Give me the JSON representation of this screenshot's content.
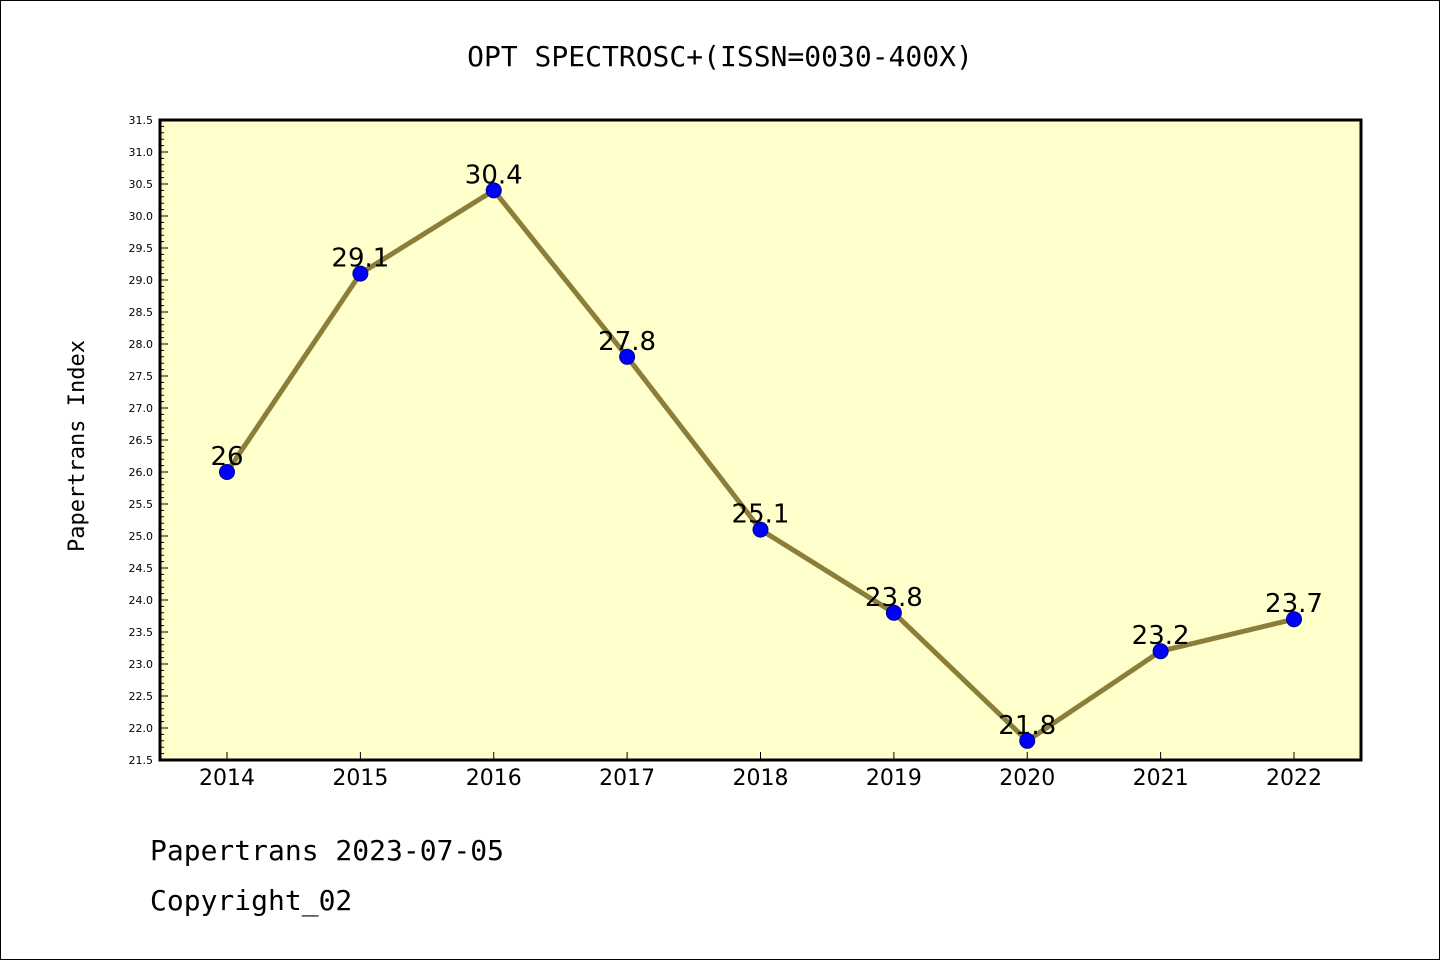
{
  "chart_data": {
    "type": "line",
    "title": "OPT SPECTROSC+(ISSN=0030-400X)",
    "ylabel": "Papertrans Index",
    "xlabel": "",
    "categories": [
      "2014",
      "2015",
      "2016",
      "2017",
      "2018",
      "2019",
      "2020",
      "2021",
      "2022"
    ],
    "series": [
      {
        "values": [
          26.0,
          29.1,
          30.4,
          27.8,
          25.1,
          23.8,
          21.8,
          23.2,
          23.7
        ],
        "data_labels": [
          "26",
          "29.1",
          "30.4",
          "27.8",
          "25.1",
          "23.8",
          "21.8",
          "23.2",
          "23.7"
        ]
      }
    ],
    "ylim": [
      21.5,
      31.5
    ],
    "yticks": [
      "21.5",
      "22.0",
      "22.5",
      "23.0",
      "23.5",
      "24.0",
      "24.5",
      "25.0",
      "25.5",
      "26.0",
      "26.5",
      "27.0",
      "27.5",
      "28.0",
      "28.5",
      "29.0",
      "29.5",
      "30.0",
      "30.5",
      "31.0",
      "31.5"
    ],
    "grid": false,
    "legend": "none",
    "colors": {
      "plot_background": "#ffffcc",
      "line": "#8b7d3a",
      "marker": "#0000ff",
      "marker_edge": "#00008b"
    }
  },
  "footer": {
    "line1": "Papertrans 2023-07-05",
    "line2": "Copyright_02"
  }
}
